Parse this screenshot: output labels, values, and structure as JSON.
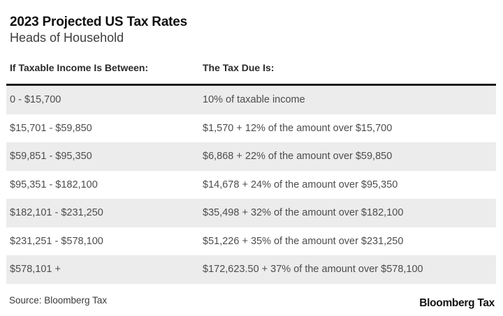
{
  "chart_data": {
    "type": "table",
    "title": "2023 Projected US Tax Rates",
    "subtitle": "Heads of Household",
    "columns": [
      "If Taxable Income Is Between:",
      "The Tax Due Is:"
    ],
    "rows": [
      [
        "0 - $15,700",
        "10% of taxable income"
      ],
      [
        "$15,701 - $59,850",
        "$1,570 + 12% of the amount over $15,700"
      ],
      [
        "$59,851 - $95,350",
        "$6,868 + 22% of the amount over $59,850"
      ],
      [
        "$95,351 - $182,100",
        "$14,678 + 24% of the amount over $95,350"
      ],
      [
        "$182,101 - $231,250",
        "$35,498 + 32% of the amount over $182,100"
      ],
      [
        "$231,251 - $578,100",
        "$51,226 + 35% of the amount over $231,250"
      ],
      [
        "$578,101 +",
        "$172,623.50 + 37% of the amount over $578,100"
      ]
    ],
    "source": "Source: Bloomberg Tax",
    "brand": "Bloomberg Tax",
    "layout": {
      "legend": "none",
      "grid": "off",
      "row_striping": "odd rows gray"
    },
    "colors": {
      "row_alt_background": "#ececec",
      "top_rule": "#1c1c1c",
      "body_text": "#4d4d4d",
      "title_text": "#0f0f0f"
    }
  }
}
